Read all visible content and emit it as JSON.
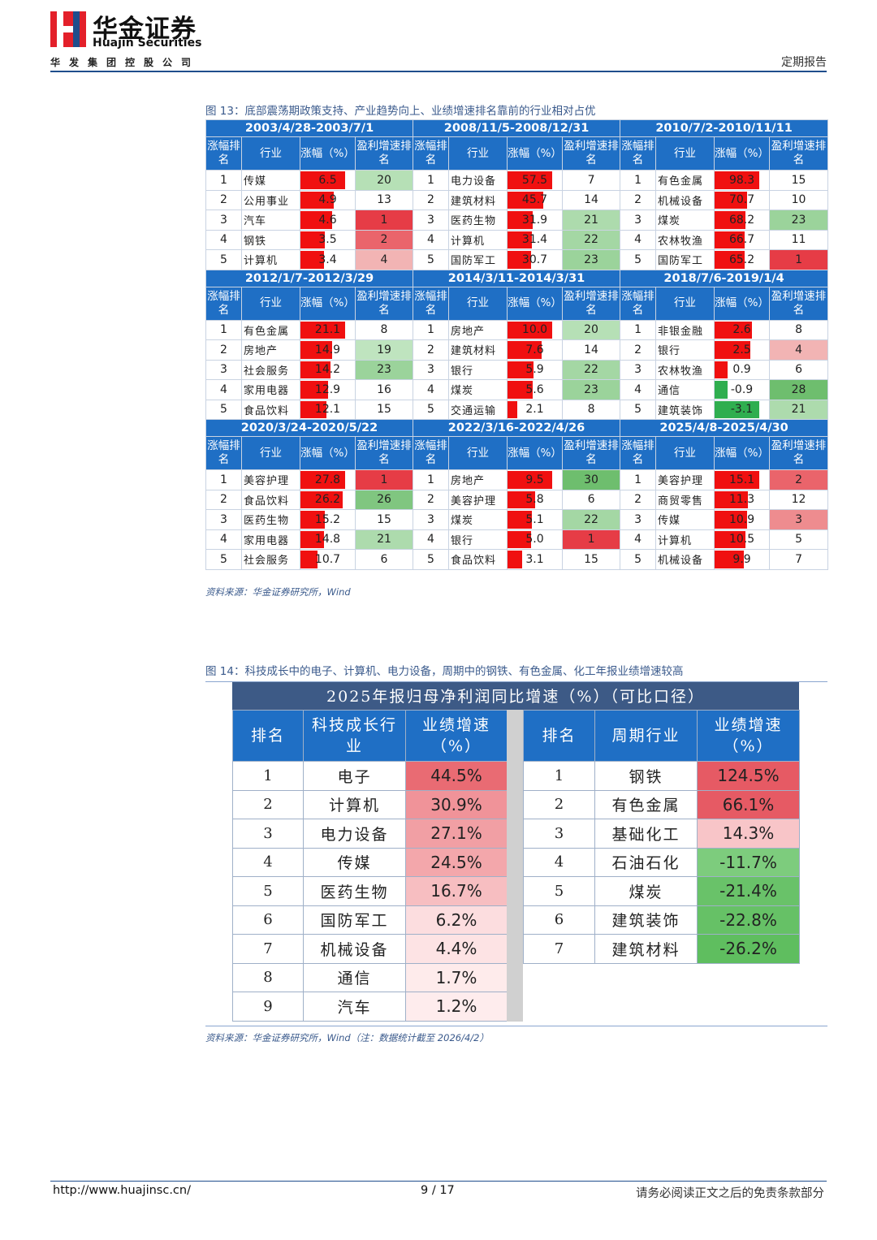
{
  "header": {
    "logo_cn": "华金证券",
    "logo_en": "Huajin Securities",
    "group_name": "华发集团控股公司",
    "report_type": "定期报告",
    "colors": {
      "brand_red": "#e3202a",
      "brand_blue": "#1f4e8c"
    }
  },
  "fig13": {
    "caption": "图 13：底部震荡期政策支持、产业趋势向上、业绩增速排名靠前的行业相对占优",
    "headers": [
      "涨幅排名",
      "行业",
      "涨幅（%）",
      "盈利增速排名"
    ],
    "rows": [
      [
        {
          "period": "2003/4/28-2003/7/1",
          "data": [
            {
              "rank": "1",
              "industry": "传媒",
              "gain": "6.5",
              "profit_rank": "20"
            },
            {
              "rank": "2",
              "industry": "公用事业",
              "gain": "4.9",
              "profit_rank": "13"
            },
            {
              "rank": "3",
              "industry": "汽车",
              "gain": "4.6",
              "profit_rank": "1"
            },
            {
              "rank": "4",
              "industry": "钢铁",
              "gain": "3.5",
              "profit_rank": "2"
            },
            {
              "rank": "5",
              "industry": "计算机",
              "gain": "3.4",
              "profit_rank": "4"
            }
          ]
        },
        {
          "period": "2008/11/5-2008/12/31",
          "data": [
            {
              "rank": "1",
              "industry": "电力设备",
              "gain": "57.5",
              "profit_rank": "7"
            },
            {
              "rank": "2",
              "industry": "建筑材料",
              "gain": "45.7",
              "profit_rank": "14"
            },
            {
              "rank": "3",
              "industry": "医药生物",
              "gain": "31.9",
              "profit_rank": "21"
            },
            {
              "rank": "4",
              "industry": "计算机",
              "gain": "31.4",
              "profit_rank": "22"
            },
            {
              "rank": "5",
              "industry": "国防军工",
              "gain": "30.7",
              "profit_rank": "23"
            }
          ]
        },
        {
          "period": "2010/7/2-2010/11/11",
          "data": [
            {
              "rank": "1",
              "industry": "有色金属",
              "gain": "98.3",
              "profit_rank": "15"
            },
            {
              "rank": "2",
              "industry": "机械设备",
              "gain": "70.7",
              "profit_rank": "10"
            },
            {
              "rank": "3",
              "industry": "煤炭",
              "gain": "68.2",
              "profit_rank": "23"
            },
            {
              "rank": "4",
              "industry": "农林牧渔",
              "gain": "66.7",
              "profit_rank": "11"
            },
            {
              "rank": "5",
              "industry": "国防军工",
              "gain": "65.2",
              "profit_rank": "1"
            }
          ]
        }
      ],
      [
        {
          "period": "2012/1/7-2012/3/29",
          "data": [
            {
              "rank": "1",
              "industry": "有色金属",
              "gain": "21.1",
              "profit_rank": "8"
            },
            {
              "rank": "2",
              "industry": "房地产",
              "gain": "14.9",
              "profit_rank": "19"
            },
            {
              "rank": "3",
              "industry": "社会服务",
              "gain": "14.2",
              "profit_rank": "23"
            },
            {
              "rank": "4",
              "industry": "家用电器",
              "gain": "12.9",
              "profit_rank": "16"
            },
            {
              "rank": "5",
              "industry": "食品饮料",
              "gain": "12.1",
              "profit_rank": "15"
            }
          ]
        },
        {
          "period": "2014/3/11-2014/3/31",
          "data": [
            {
              "rank": "1",
              "industry": "房地产",
              "gain": "10.0",
              "profit_rank": "20"
            },
            {
              "rank": "2",
              "industry": "建筑材料",
              "gain": "7.6",
              "profit_rank": "14"
            },
            {
              "rank": "3",
              "industry": "银行",
              "gain": "5.9",
              "profit_rank": "22"
            },
            {
              "rank": "4",
              "industry": "煤炭",
              "gain": "5.6",
              "profit_rank": "23"
            },
            {
              "rank": "5",
              "industry": "交通运输",
              "gain": "2.1",
              "profit_rank": "8"
            }
          ]
        },
        {
          "period": "2018/7/6-2019/1/4",
          "data": [
            {
              "rank": "1",
              "industry": "非银金融",
              "gain": "2.6",
              "profit_rank": "8"
            },
            {
              "rank": "2",
              "industry": "银行",
              "gain": "2.5",
              "profit_rank": "4"
            },
            {
              "rank": "3",
              "industry": "农林牧渔",
              "gain": "0.9",
              "profit_rank": "6"
            },
            {
              "rank": "4",
              "industry": "通信",
              "gain": "-0.9",
              "profit_rank": "28"
            },
            {
              "rank": "5",
              "industry": "建筑装饰",
              "gain": "-3.1",
              "profit_rank": "21"
            }
          ]
        }
      ],
      [
        {
          "period": "2020/3/24-2020/5/22",
          "data": [
            {
              "rank": "1",
              "industry": "美容护理",
              "gain": "27.8",
              "profit_rank": "1"
            },
            {
              "rank": "2",
              "industry": "食品饮料",
              "gain": "26.2",
              "profit_rank": "26"
            },
            {
              "rank": "3",
              "industry": "医药生物",
              "gain": "15.2",
              "profit_rank": "15"
            },
            {
              "rank": "4",
              "industry": "家用电器",
              "gain": "14.8",
              "profit_rank": "21"
            },
            {
              "rank": "5",
              "industry": "社会服务",
              "gain": "10.7",
              "profit_rank": "6"
            }
          ]
        },
        {
          "period": "2022/3/16-2022/4/26",
          "data": [
            {
              "rank": "1",
              "industry": "房地产",
              "gain": "9.5",
              "profit_rank": "30"
            },
            {
              "rank": "2",
              "industry": "美容护理",
              "gain": "5.8",
              "profit_rank": "6"
            },
            {
              "rank": "3",
              "industry": "煤炭",
              "gain": "5.1",
              "profit_rank": "22"
            },
            {
              "rank": "4",
              "industry": "银行",
              "gain": "5.0",
              "profit_rank": "1"
            },
            {
              "rank": "5",
              "industry": "食品饮料",
              "gain": "3.1",
              "profit_rank": "15"
            }
          ]
        },
        {
          "period": "2025/4/8-2025/4/30",
          "data": [
            {
              "rank": "1",
              "industry": "美容护理",
              "gain": "15.1",
              "profit_rank": "2"
            },
            {
              "rank": "2",
              "industry": "商贸零售",
              "gain": "11.3",
              "profit_rank": "12"
            },
            {
              "rank": "3",
              "industry": "传媒",
              "gain": "10.9",
              "profit_rank": "3"
            },
            {
              "rank": "4",
              "industry": "计算机",
              "gain": "10.5",
              "profit_rank": "5"
            },
            {
              "rank": "5",
              "industry": "机械设备",
              "gain": "9.9",
              "profit_rank": "7"
            }
          ]
        }
      ]
    ],
    "source": "资料来源：华金证券研究所，Wind"
  },
  "fig14": {
    "caption": "图 14：科技成长中的电子、计算机、电力设备，周期中的钢铁、有色金属、化工年报业绩增速较高",
    "title": "2025年报归母净利润同比增速（%）（可比口径）",
    "left_headers": [
      "排名",
      "科技成长行业",
      "业绩增速（%）"
    ],
    "right_headers": [
      "排名",
      "周期行业",
      "业绩增速（%）"
    ],
    "tech": [
      {
        "rank": "1",
        "industry": "电子",
        "growth": "44.5%"
      },
      {
        "rank": "2",
        "industry": "计算机",
        "growth": "30.9%"
      },
      {
        "rank": "3",
        "industry": "电力设备",
        "growth": "27.1%"
      },
      {
        "rank": "4",
        "industry": "传媒",
        "growth": "24.5%"
      },
      {
        "rank": "5",
        "industry": "医药生物",
        "growth": "16.7%"
      },
      {
        "rank": "6",
        "industry": "国防军工",
        "growth": "6.2%"
      },
      {
        "rank": "7",
        "industry": "机械设备",
        "growth": "4.4%"
      },
      {
        "rank": "8",
        "industry": "通信",
        "growth": "1.7%"
      },
      {
        "rank": "9",
        "industry": "汽车",
        "growth": "1.2%"
      }
    ],
    "cycle": [
      {
        "rank": "1",
        "industry": "钢铁",
        "growth": "124.5%"
      },
      {
        "rank": "2",
        "industry": "有色金属",
        "growth": "66.1%"
      },
      {
        "rank": "3",
        "industry": "基础化工",
        "growth": "14.3%"
      },
      {
        "rank": "4",
        "industry": "石油石化",
        "growth": "-11.7%"
      },
      {
        "rank": "5",
        "industry": "煤炭",
        "growth": "-21.4%"
      },
      {
        "rank": "6",
        "industry": "建筑装饰",
        "growth": "-22.8%"
      },
      {
        "rank": "7",
        "industry": "建筑材料",
        "growth": "-26.2%"
      }
    ],
    "source": "资料来源：华金证券研究所，Wind（注：数据统计截至 2026/4/2）"
  },
  "footer": {
    "url": "http://www.huajinsc.cn/",
    "page": "9 / 17",
    "disclaimer": "请务必阅读正文之后的免责条款部分"
  }
}
